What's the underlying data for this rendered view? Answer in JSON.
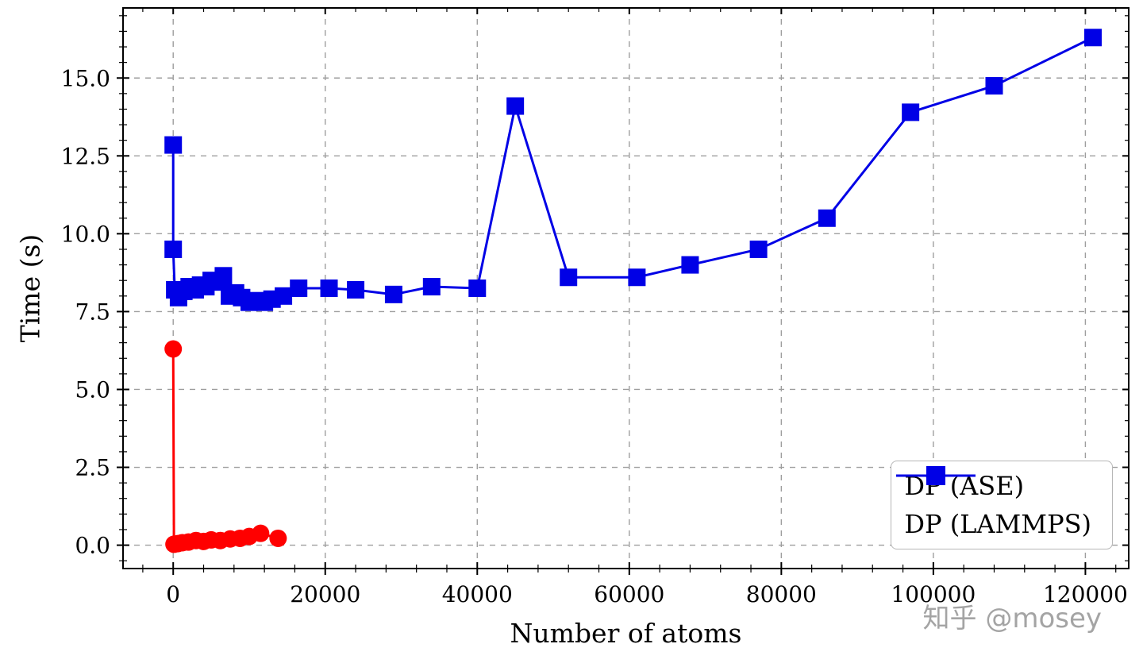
{
  "watermark": "知乎 @mosey",
  "chart_data": {
    "type": "line",
    "title": "",
    "xlabel": "Number of atoms",
    "ylabel": "Time (s)",
    "xlim": [
      -6600,
      125700
    ],
    "ylim": [
      -0.75,
      17.25
    ],
    "xticks": [
      0,
      20000,
      40000,
      60000,
      80000,
      100000,
      120000
    ],
    "xtick_labels": [
      "0",
      "20000",
      "40000",
      "60000",
      "80000",
      "100000",
      "120000"
    ],
    "yticks": [
      0,
      2.5,
      5,
      7.5,
      10,
      12.5,
      15
    ],
    "ytick_labels": [
      "0.0",
      "2.5",
      "5.0",
      "7.5",
      "10.0",
      "12.5",
      "15.0"
    ],
    "grid": true,
    "grid_style": "dashed",
    "grid_color": "#9e9e9e",
    "legend_position": "lower right",
    "series": [
      {
        "name": "DP (ASE)",
        "color": "#ff0000",
        "marker": "circle",
        "x": [
          0,
          100,
          600,
          1200,
          2000,
          3000,
          4000,
          5000,
          6200,
          7500,
          8800,
          10000,
          11500,
          13800
        ],
        "y": [
          6.3,
          0.03,
          0.05,
          0.08,
          0.1,
          0.15,
          0.12,
          0.17,
          0.15,
          0.2,
          0.22,
          0.28,
          0.38,
          0.22
        ]
      },
      {
        "name": "DP (LAMMPS)",
        "color": "#0000e6",
        "marker": "square",
        "x": [
          0,
          0,
          200,
          700,
          1400,
          2100,
          2900,
          3600,
          4300,
          5000,
          5800,
          6600,
          7400,
          8200,
          9000,
          10000,
          11000,
          12000,
          13000,
          14500,
          16500,
          20500,
          24000,
          29000,
          34000,
          40000,
          45000,
          52000,
          61000,
          68000,
          77000,
          86000,
          97000,
          108000,
          121000
        ],
        "y": [
          12.85,
          9.5,
          8.2,
          7.95,
          8.15,
          8.3,
          8.2,
          8.35,
          8.3,
          8.5,
          8.45,
          8.65,
          8.0,
          8.1,
          7.95,
          7.8,
          7.85,
          7.8,
          7.9,
          8.0,
          8.25,
          8.25,
          8.2,
          8.05,
          8.3,
          8.25,
          14.1,
          8.6,
          8.6,
          9.0,
          9.5,
          10.5,
          13.9,
          14.75,
          16.3
        ]
      }
    ]
  }
}
